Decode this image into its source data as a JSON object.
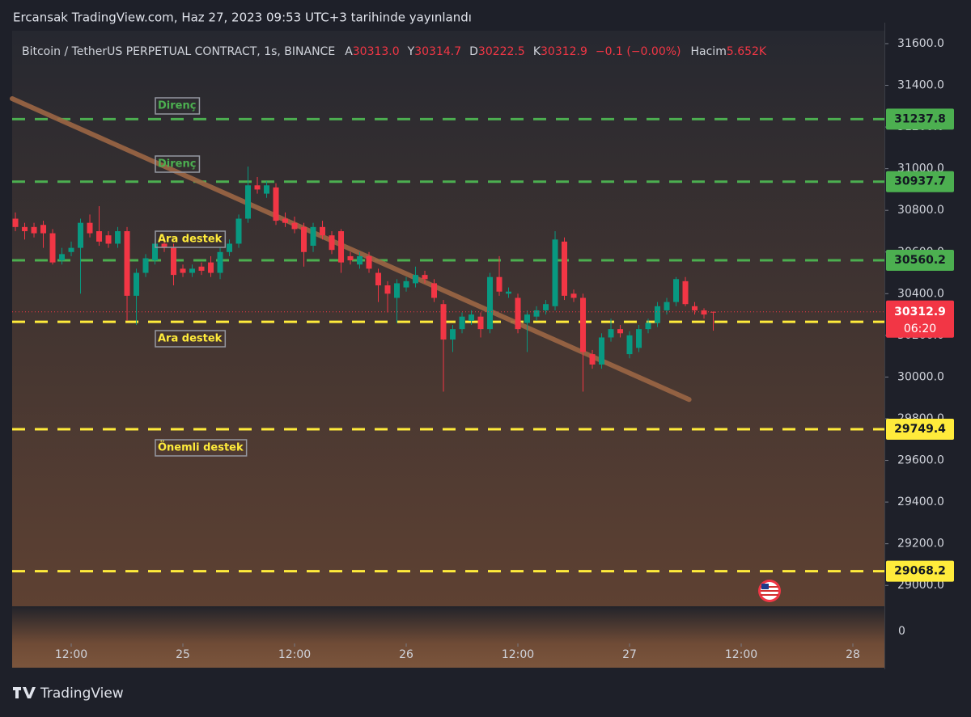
{
  "header": {
    "title": "Ercansak TradingView.com, Haz 27, 2023 09:53 UTC+3 tarihinde yayınlandı",
    "brand": "TradingView"
  },
  "chart_data": {
    "type": "candlestick",
    "title": "Bitcoin / TetherUS PERPETUAL CONTRACT, 1s, BINANCE",
    "ohlc_legend": [
      {
        "label": "A",
        "value": "30313.0"
      },
      {
        "label": "Y",
        "value": "30314.7"
      },
      {
        "label": "D",
        "value": "30222.5"
      },
      {
        "label": "K",
        "value": "30312.9"
      }
    ],
    "change": "−0.1 (−0.00%)",
    "volume_label": "Hacim",
    "volume_value": "5.652K",
    "up_color": "#089981",
    "down_color": "#f23645",
    "x": [
      6,
      7,
      8,
      9,
      10,
      11,
      12,
      13,
      14,
      15,
      16,
      17,
      18,
      19,
      20,
      21,
      22,
      23,
      24,
      25,
      26,
      27,
      28,
      29,
      30,
      31,
      32,
      33,
      34,
      35,
      36,
      37,
      38,
      39,
      40,
      41,
      42,
      43,
      44,
      45,
      46,
      47,
      48,
      49,
      50,
      51,
      52,
      53,
      54,
      55,
      56,
      57,
      58,
      59,
      60,
      61,
      62,
      63,
      64,
      65,
      66,
      67,
      68,
      69,
      70,
      71,
      72,
      73,
      74,
      75,
      76,
      77,
      78,
      79,
      80,
      81
    ],
    "open": [
      30760,
      30720,
      30720,
      30730,
      30690,
      30560,
      30600,
      30620,
      30740,
      30700,
      30680,
      30640,
      30700,
      30390,
      30500,
      30560,
      30640,
      30620,
      30520,
      30500,
      30530,
      30550,
      30500,
      30600,
      30640,
      30760,
      30920,
      30880,
      30910,
      30760,
      30740,
      30720,
      30630,
      30720,
      30680,
      30700,
      30580,
      30540,
      30580,
      30500,
      30440,
      30380,
      30430,
      30450,
      30490,
      30450,
      30350,
      30180,
      30230,
      30270,
      30290,
      30230,
      30480,
      30400,
      30380,
      30260,
      30290,
      30320,
      30340,
      30650,
      30400,
      30380,
      30110,
      30060,
      30190,
      30230,
      30110,
      30140,
      30230,
      30260,
      30320,
      30360,
      30460,
      30340,
      30320,
      30313.0
    ],
    "high": [
      30790,
      30740,
      30740,
      30750,
      30710,
      30620,
      30650,
      30760,
      30780,
      30820,
      30700,
      30720,
      30720,
      30520,
      30590,
      30660,
      30670,
      30640,
      30540,
      30540,
      30550,
      30580,
      30620,
      30660,
      30780,
      31010,
      30960,
      30940,
      30930,
      30790,
      30770,
      30740,
      30740,
      30750,
      30700,
      30710,
      30600,
      30600,
      30600,
      30520,
      30460,
      30470,
      30480,
      30530,
      30510,
      30470,
      30370,
      30250,
      30310,
      30320,
      30310,
      30500,
      30580,
      30430,
      30400,
      30320,
      30340,
      30370,
      30700,
      30670,
      30420,
      30400,
      30130,
      30210,
      30280,
      30250,
      30220,
      30250,
      30280,
      30360,
      30380,
      30480,
      30480,
      30360,
      30330,
      30314.7
    ],
    "low": [
      30700,
      30660,
      30670,
      30620,
      30540,
      30540,
      30580,
      30400,
      30670,
      30630,
      30620,
      30620,
      30270,
      30250,
      30480,
      30540,
      30600,
      30440,
      30480,
      30480,
      30490,
      30480,
      30470,
      30580,
      30620,
      30740,
      30880,
      30860,
      30730,
      30720,
      30690,
      30530,
      30600,
      30660,
      30590,
      30500,
      30540,
      30520,
      30500,
      30360,
      30310,
      30260,
      30410,
      30430,
      30450,
      30360,
      29930,
      30120,
      30210,
      30250,
      30190,
      30210,
      30390,
      30380,
      30210,
      30120,
      30270,
      30300,
      30320,
      30370,
      30360,
      29930,
      30040,
      30040,
      30170,
      30190,
      30090,
      30120,
      30210,
      30240,
      30300,
      30340,
      30340,
      30300,
      30280,
      30222.5
    ],
    "close": [
      30720,
      30700,
      30690,
      30690,
      30550,
      30590,
      30620,
      30740,
      30690,
      30650,
      30640,
      30700,
      30390,
      30500,
      30570,
      30640,
      30620,
      30490,
      30500,
      30520,
      30510,
      30500,
      30600,
      30640,
      30760,
      30920,
      30900,
      30920,
      30750,
      30740,
      30710,
      30600,
      30720,
      30680,
      30610,
      30550,
      30560,
      30580,
      30520,
      30440,
      30400,
      30450,
      30460,
      30490,
      30470,
      30380,
      30180,
      30230,
      30290,
      30300,
      30230,
      30480,
      30410,
      30410,
      30230,
      30300,
      30320,
      30350,
      30660,
      30390,
      30380,
      30120,
      30060,
      30190,
      30230,
      30210,
      30200,
      30230,
      30260,
      30340,
      30360,
      30470,
      30350,
      30320,
      30300,
      30312.9
    ],
    "xlim": [
      5.65,
      99.39
    ],
    "ylim": [
      28900,
      31662
    ],
    "xticks": [
      {
        "value": 12,
        "label": "12:00"
      },
      {
        "value": 24,
        "label": "25"
      },
      {
        "value": 36,
        "label": "12:00"
      },
      {
        "value": 48,
        "label": "26"
      },
      {
        "value": 60,
        "label": "12:00"
      },
      {
        "value": 72,
        "label": "27"
      },
      {
        "value": 84,
        "label": "12:00"
      },
      {
        "value": 96,
        "label": "28"
      }
    ],
    "yticks": [
      {
        "value": 29000,
        "label": "29000.0"
      },
      {
        "value": 29200,
        "label": "29200.0"
      },
      {
        "value": 29400,
        "label": "29400.0"
      },
      {
        "value": 29600,
        "label": "29600.0"
      },
      {
        "value": 29800,
        "label": "29800.0"
      },
      {
        "value": 30000,
        "label": "30000.0"
      },
      {
        "value": 30200,
        "label": "30200.0"
      },
      {
        "value": 30400,
        "label": "30400.0"
      },
      {
        "value": 30600,
        "label": "30600.0"
      },
      {
        "value": 30800,
        "label": "30800.0"
      },
      {
        "value": 31000,
        "label": "31000.0"
      },
      {
        "value": 31200,
        "label": "31200.0"
      },
      {
        "value": 31400,
        "label": "31400.0"
      },
      {
        "value": 31600,
        "label": "31600.0"
      }
    ],
    "volume_yticks": [
      0
    ],
    "levels": [
      {
        "value": 31237.8,
        "color": "#4caf50"
      },
      {
        "value": 30937.7,
        "color": "#4caf50"
      },
      {
        "value": 30560.2,
        "color": "#4caf50"
      },
      {
        "value": 30264.8,
        "color": "#ffeb3b"
      },
      {
        "value": 29749.4,
        "color": "#ffeb3b"
      },
      {
        "value": 29068.2,
        "color": "#ffeb3b"
      }
    ],
    "last_price": {
      "value": 30312.9,
      "countdown": "06:20"
    },
    "trendline": {
      "x": [
        5.65,
        78.4
      ],
      "values": [
        31336,
        29892
      ],
      "color": "#9c6644"
    },
    "annotations": [
      "Direnç",
      "Direnç",
      "Ara destek",
      "Ara destek",
      "Önemli destek"
    ]
  }
}
